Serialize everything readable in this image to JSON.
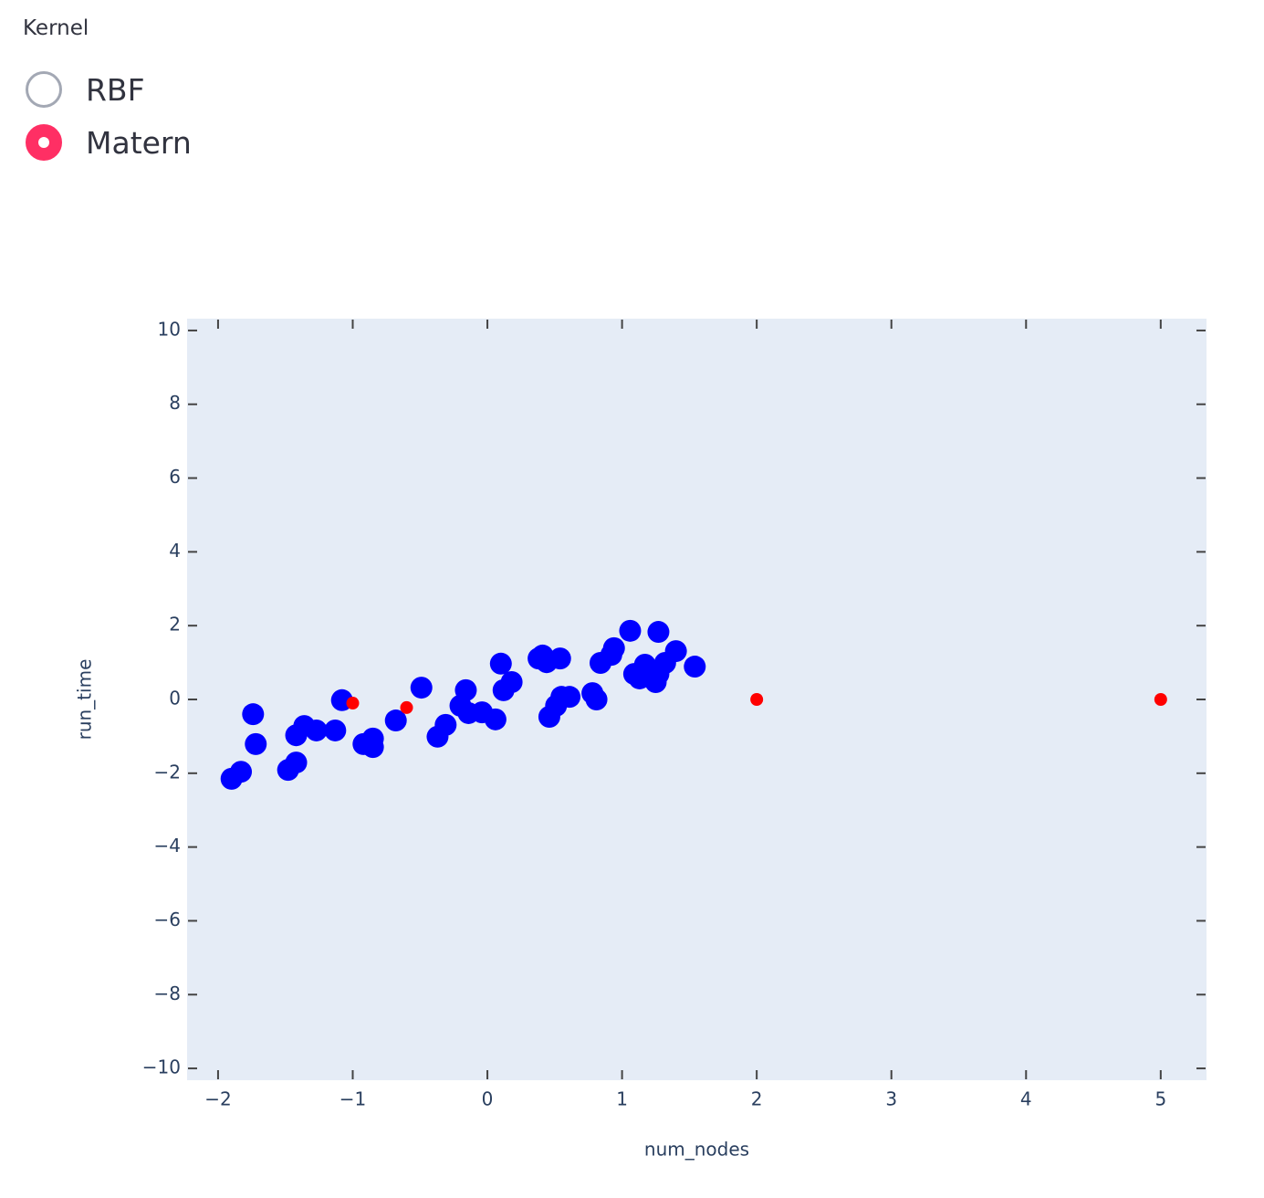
{
  "widget": {
    "label": "Kernel",
    "options": [
      "RBF",
      "Matern"
    ],
    "selected": 1
  },
  "chart_data": {
    "type": "scatter",
    "xlabel": "num_nodes",
    "ylabel": "run_time",
    "xlim": [
      -2.23,
      5.34
    ],
    "ylim": [
      -10.32,
      10.32
    ],
    "xticks": [
      {
        "value": -2,
        "label": "−2"
      },
      {
        "value": -1,
        "label": "−1"
      },
      0,
      1,
      2,
      3,
      4,
      5
    ],
    "yticks": [
      {
        "value": -10,
        "label": "−10"
      },
      {
        "value": -8,
        "label": "−8"
      },
      {
        "value": -6,
        "label": "−6"
      },
      {
        "value": -4,
        "label": "−4"
      },
      {
        "value": -2,
        "label": "−2"
      },
      0,
      2,
      4,
      6,
      8,
      10
    ],
    "background": "#e5ecf6",
    "series": [
      {
        "color": "#0000ff",
        "marker_size": 12,
        "x": [
          -1.9,
          -1.83,
          -1.74,
          -1.72,
          -1.48,
          -1.42,
          -1.42,
          -1.36,
          -1.27,
          -1.13,
          -1.08,
          -0.92,
          -0.85,
          -0.85,
          -0.68,
          -0.49,
          -0.37,
          -0.31,
          -0.2,
          -0.16,
          -0.14,
          -0.04,
          0.06,
          0.1,
          0.12,
          0.18,
          0.38,
          0.41,
          0.44,
          0.46,
          0.51,
          0.54,
          0.55,
          0.61,
          0.78,
          0.81,
          0.84,
          0.92,
          0.94,
          1.06,
          1.09,
          1.13,
          1.17,
          1.25,
          1.27,
          1.27,
          1.32,
          1.4,
          1.54
        ],
        "values": [
          -2.15,
          -1.96,
          -0.4,
          -1.21,
          -1.91,
          -1.71,
          -0.97,
          -0.72,
          -0.84,
          -0.84,
          -0.02,
          -1.21,
          -1.29,
          -1.06,
          -0.57,
          0.32,
          -1.01,
          -0.69,
          -0.17,
          0.25,
          -0.37,
          -0.35,
          -0.54,
          0.97,
          0.25,
          0.47,
          1.11,
          1.19,
          1.01,
          -0.47,
          -0.17,
          1.11,
          0.07,
          0.07,
          0.17,
          0.0,
          0.99,
          1.21,
          1.39,
          1.86,
          0.69,
          0.57,
          0.94,
          0.47,
          0.69,
          1.83,
          0.99,
          1.31,
          0.89
        ]
      },
      {
        "color": "#ff0000",
        "marker_size": 7,
        "x": [
          -1.0,
          -0.6,
          2.0,
          5.0
        ],
        "values": [
          -0.1,
          -0.22,
          0,
          0
        ]
      }
    ]
  }
}
